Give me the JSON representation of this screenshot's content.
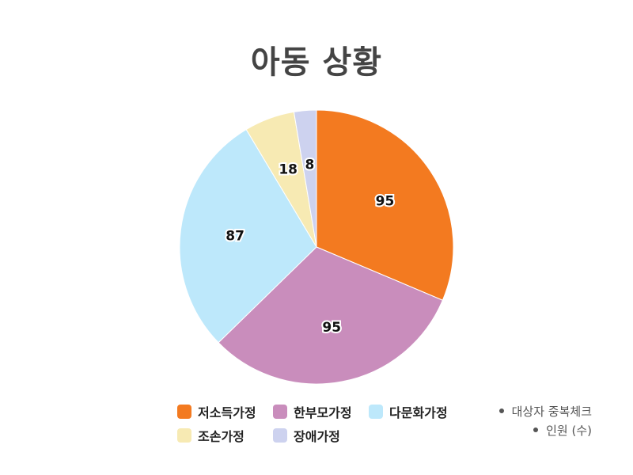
{
  "chart_data": {
    "type": "pie",
    "title": "아동 상황",
    "categories": [
      "저소득가정",
      "한부모가정",
      "다문화가정",
      "조손가정",
      "장애가정"
    ],
    "values": [
      95,
      95,
      87,
      18,
      8
    ],
    "colors": [
      "#F37A20",
      "#C98DBC",
      "#BDE8FB",
      "#F7EAB3",
      "#CDD2EF"
    ],
    "legend_position": "bottom",
    "notes": [
      "대상자 중복체크",
      "인원 (수)"
    ]
  }
}
